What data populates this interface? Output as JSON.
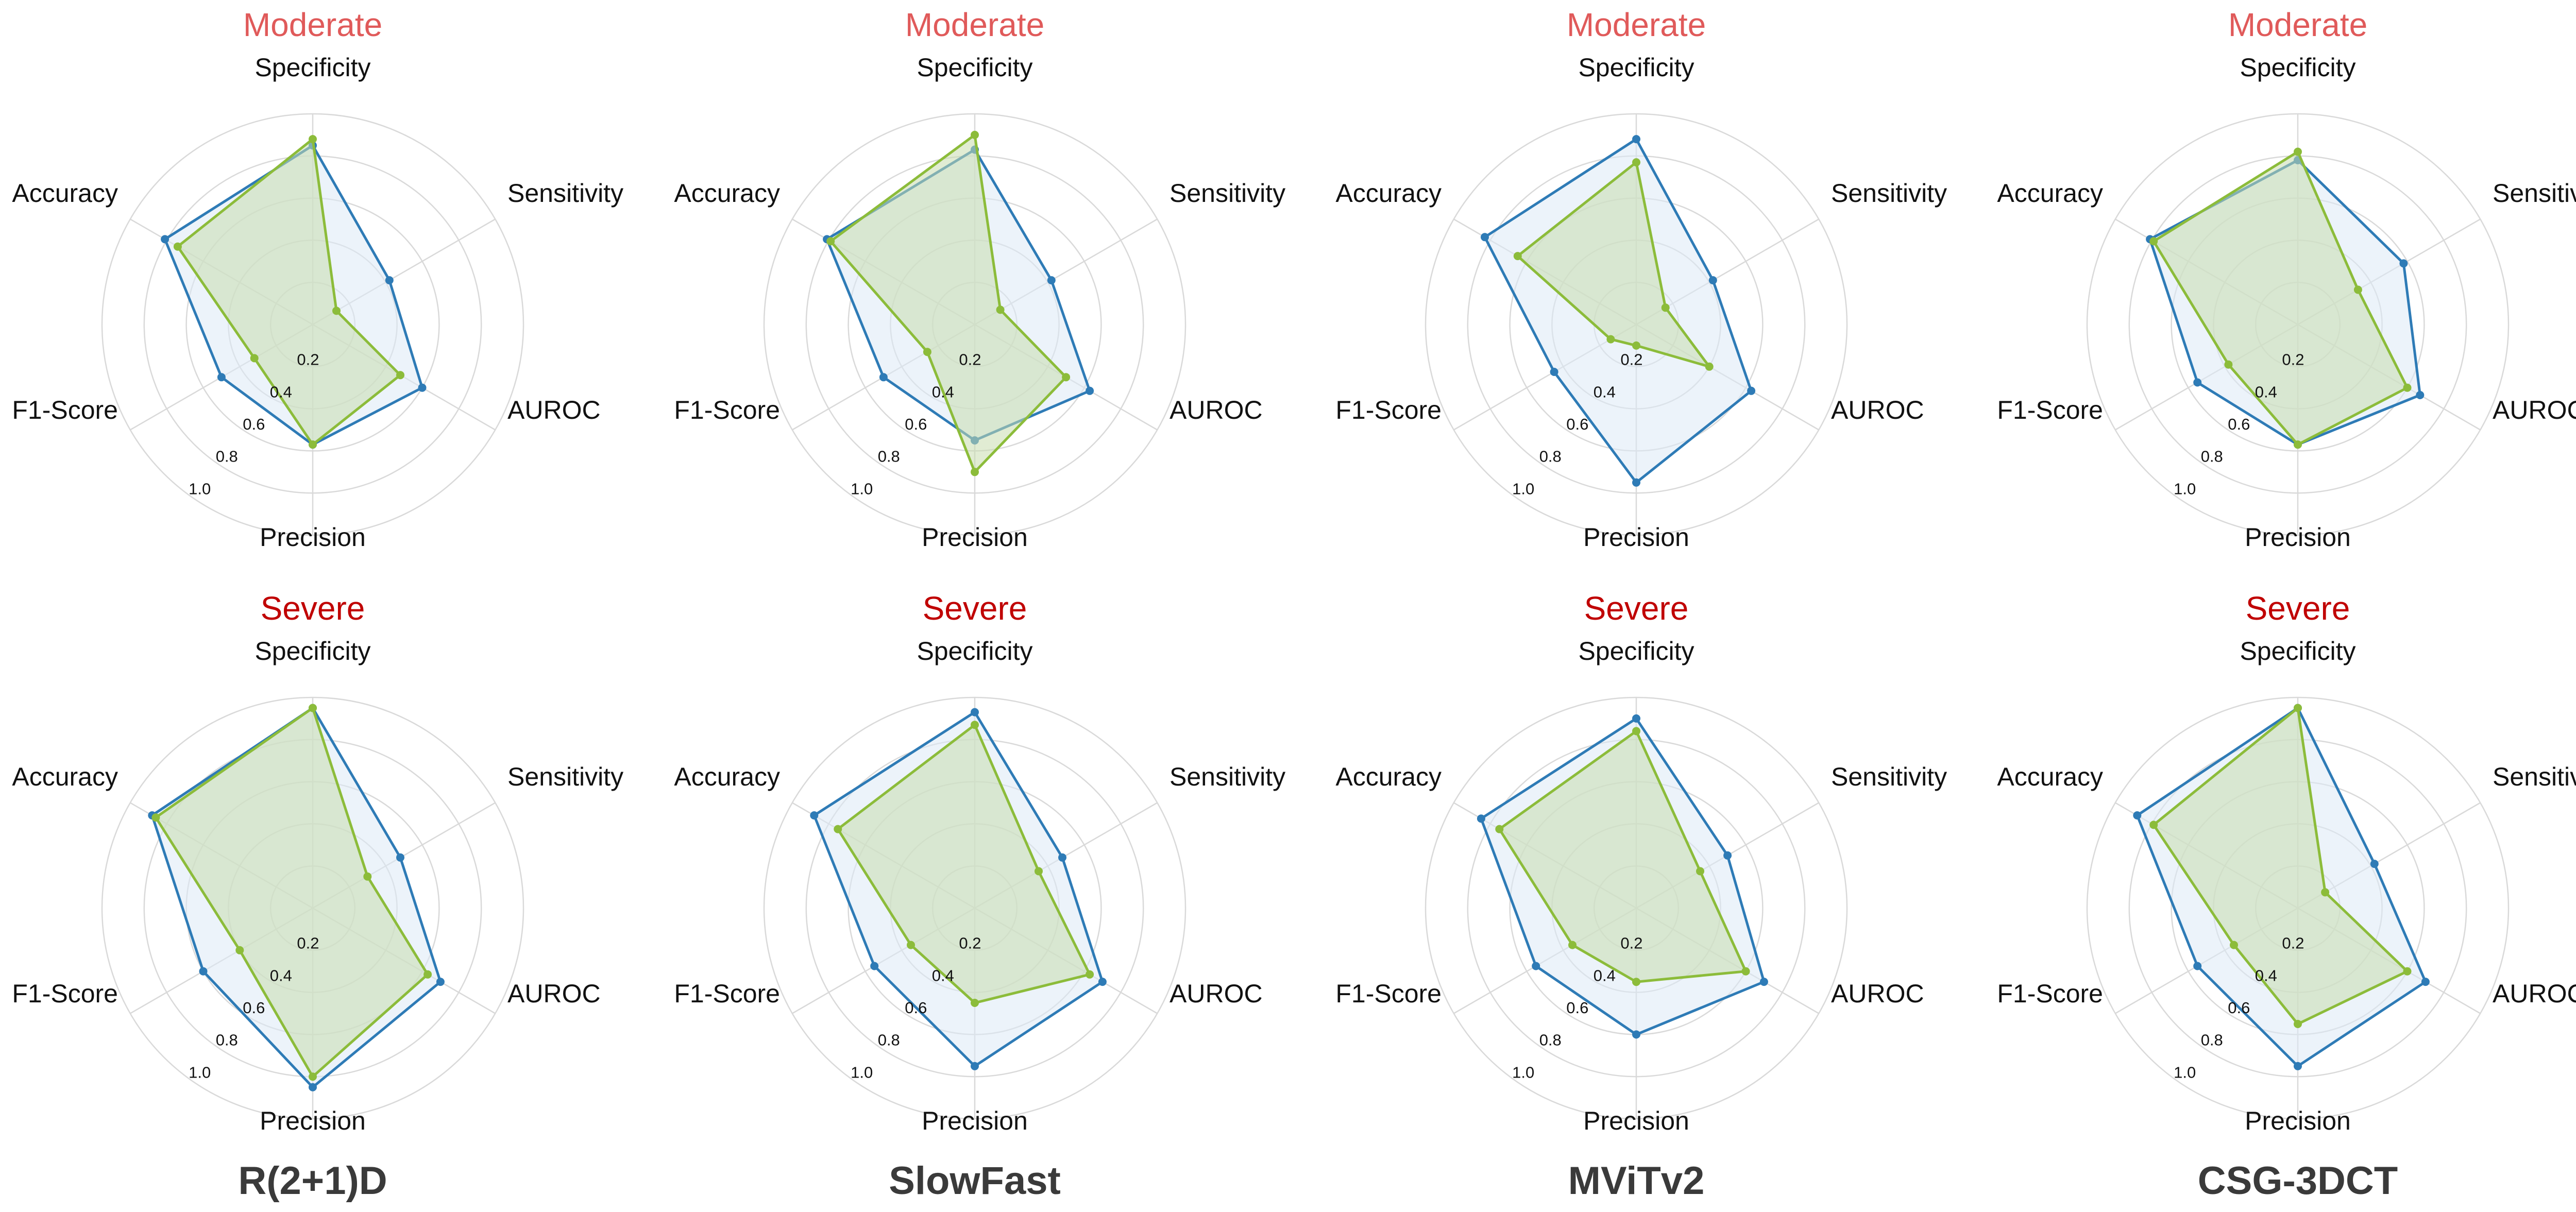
{
  "figure": {
    "model_titles": [
      "R(2+1)D",
      "SlowFast",
      "MViTv2",
      "CSG-3DCT"
    ],
    "row_titles": [
      "Moderate",
      "Severe"
    ]
  },
  "colors": {
    "moderate_title": "#e05a5a",
    "severe_title": "#c00000",
    "series_blue": "#2e7bb6",
    "series_green": "#8cbc3a",
    "blue_fill": "#dce9f6",
    "green_fill": "#c8dcae",
    "grid": "#d9d9d9"
  },
  "chart_data": [
    {
      "type": "radar",
      "model": "R(2+1)D",
      "title": "Moderate",
      "axes": [
        "Specificity",
        "Sensitivity",
        "AUROC",
        "Precision",
        "F1-Score",
        "Accuracy"
      ],
      "rlim": [
        0,
        1.0
      ],
      "ticks": [
        0.2,
        0.4,
        0.6,
        0.8,
        1.0
      ],
      "tick_labels": [
        "0.2",
        "0.4",
        "0.6",
        "0.8",
        "1.0"
      ],
      "series": [
        {
          "name": "blue",
          "values": [
            0.85,
            0.42,
            0.6,
            0.57,
            0.5,
            0.81
          ]
        },
        {
          "name": "green",
          "values": [
            0.88,
            0.13,
            0.48,
            0.57,
            0.32,
            0.74
          ]
        }
      ]
    },
    {
      "type": "radar",
      "model": "SlowFast",
      "title": "Moderate",
      "axes": [
        "Specificity",
        "Sensitivity",
        "AUROC",
        "Precision",
        "F1-Score",
        "Accuracy"
      ],
      "rlim": [
        0,
        1.0
      ],
      "ticks": [
        0.2,
        0.4,
        0.6,
        0.8,
        1.0
      ],
      "tick_labels": [
        "0.2",
        "0.4",
        "0.6",
        "0.8",
        "1.0"
      ],
      "series": [
        {
          "name": "blue",
          "values": [
            0.83,
            0.42,
            0.63,
            0.55,
            0.5,
            0.81
          ]
        },
        {
          "name": "green",
          "values": [
            0.9,
            0.14,
            0.5,
            0.7,
            0.26,
            0.79
          ]
        }
      ]
    },
    {
      "type": "radar",
      "model": "MViTv2",
      "title": "Moderate",
      "axes": [
        "Specificity",
        "Sensitivity",
        "AUROC",
        "Precision",
        "F1-Score",
        "Accuracy"
      ],
      "rlim": [
        0,
        1.0
      ],
      "ticks": [
        0.2,
        0.4,
        0.6,
        0.8,
        1.0
      ],
      "tick_labels": [
        "0.2",
        "0.4",
        "0.6",
        "0.8",
        "1.0"
      ],
      "series": [
        {
          "name": "blue",
          "values": [
            0.88,
            0.42,
            0.63,
            0.75,
            0.45,
            0.83
          ]
        },
        {
          "name": "green",
          "values": [
            0.77,
            0.16,
            0.4,
            0.1,
            0.14,
            0.65
          ]
        }
      ]
    },
    {
      "type": "radar",
      "model": "CSG-3DCT",
      "title": "Moderate",
      "axes": [
        "Specificity",
        "Sensitivity",
        "AUROC",
        "Precision",
        "F1-Score",
        "Accuracy"
      ],
      "rlim": [
        0,
        1.0
      ],
      "ticks": [
        0.2,
        0.4,
        0.6,
        0.8,
        1.0
      ],
      "tick_labels": [
        "0.2",
        "0.4",
        "0.6",
        "0.8",
        "1.0"
      ],
      "series": [
        {
          "name": "blue",
          "values": [
            0.78,
            0.58,
            0.67,
            0.57,
            0.55,
            0.81
          ]
        },
        {
          "name": "green",
          "values": [
            0.82,
            0.33,
            0.6,
            0.57,
            0.38,
            0.79
          ]
        }
      ]
    },
    {
      "type": "radar",
      "model": "R(2+1)D",
      "title": "Severe",
      "axes": [
        "Specificity",
        "Sensitivity",
        "AUROC",
        "Precision",
        "F1-Score",
        "Accuracy"
      ],
      "rlim": [
        0,
        1.0
      ],
      "ticks": [
        0.2,
        0.4,
        0.6,
        0.8,
        1.0
      ],
      "tick_labels": [
        "0.2",
        "0.4",
        "0.6",
        "0.8",
        "1.0"
      ],
      "series": [
        {
          "name": "blue",
          "values": [
            0.95,
            0.48,
            0.7,
            0.85,
            0.6,
            0.88
          ]
        },
        {
          "name": "green",
          "values": [
            0.95,
            0.3,
            0.63,
            0.8,
            0.4,
            0.86
          ]
        }
      ]
    },
    {
      "type": "radar",
      "model": "SlowFast",
      "title": "Severe",
      "axes": [
        "Specificity",
        "Sensitivity",
        "AUROC",
        "Precision",
        "F1-Score",
        "Accuracy"
      ],
      "rlim": [
        0,
        1.0
      ],
      "ticks": [
        0.2,
        0.4,
        0.6,
        0.8,
        1.0
      ],
      "tick_labels": [
        "0.2",
        "0.4",
        "0.6",
        "0.8",
        "1.0"
      ],
      "series": [
        {
          "name": "blue",
          "values": [
            0.93,
            0.48,
            0.7,
            0.75,
            0.55,
            0.88
          ]
        },
        {
          "name": "green",
          "values": [
            0.87,
            0.35,
            0.63,
            0.45,
            0.35,
            0.75
          ]
        }
      ]
    },
    {
      "type": "radar",
      "model": "MViTv2",
      "title": "Severe",
      "axes": [
        "Specificity",
        "Sensitivity",
        "AUROC",
        "Precision",
        "F1-Score",
        "Accuracy"
      ],
      "rlim": [
        0,
        1.0
      ],
      "ticks": [
        0.2,
        0.4,
        0.6,
        0.8,
        1.0
      ],
      "tick_labels": [
        "0.2",
        "0.4",
        "0.6",
        "0.8",
        "1.0"
      ],
      "series": [
        {
          "name": "blue",
          "values": [
            0.9,
            0.5,
            0.7,
            0.6,
            0.55,
            0.85
          ]
        },
        {
          "name": "green",
          "values": [
            0.84,
            0.35,
            0.6,
            0.35,
            0.35,
            0.75
          ]
        }
      ]
    },
    {
      "type": "radar",
      "model": "CSG-3DCT",
      "title": "Severe",
      "axes": [
        "Specificity",
        "Sensitivity",
        "AUROC",
        "Precision",
        "F1-Score",
        "Accuracy"
      ],
      "rlim": [
        0,
        1.0
      ],
      "ticks": [
        0.2,
        0.4,
        0.6,
        0.8,
        1.0
      ],
      "tick_labels": [
        "0.2",
        "0.4",
        "0.6",
        "0.8",
        "1.0"
      ],
      "series": [
        {
          "name": "blue",
          "values": [
            0.95,
            0.42,
            0.7,
            0.75,
            0.55,
            0.88
          ]
        },
        {
          "name": "green",
          "values": [
            0.95,
            0.15,
            0.6,
            0.55,
            0.35,
            0.79
          ]
        }
      ]
    }
  ]
}
